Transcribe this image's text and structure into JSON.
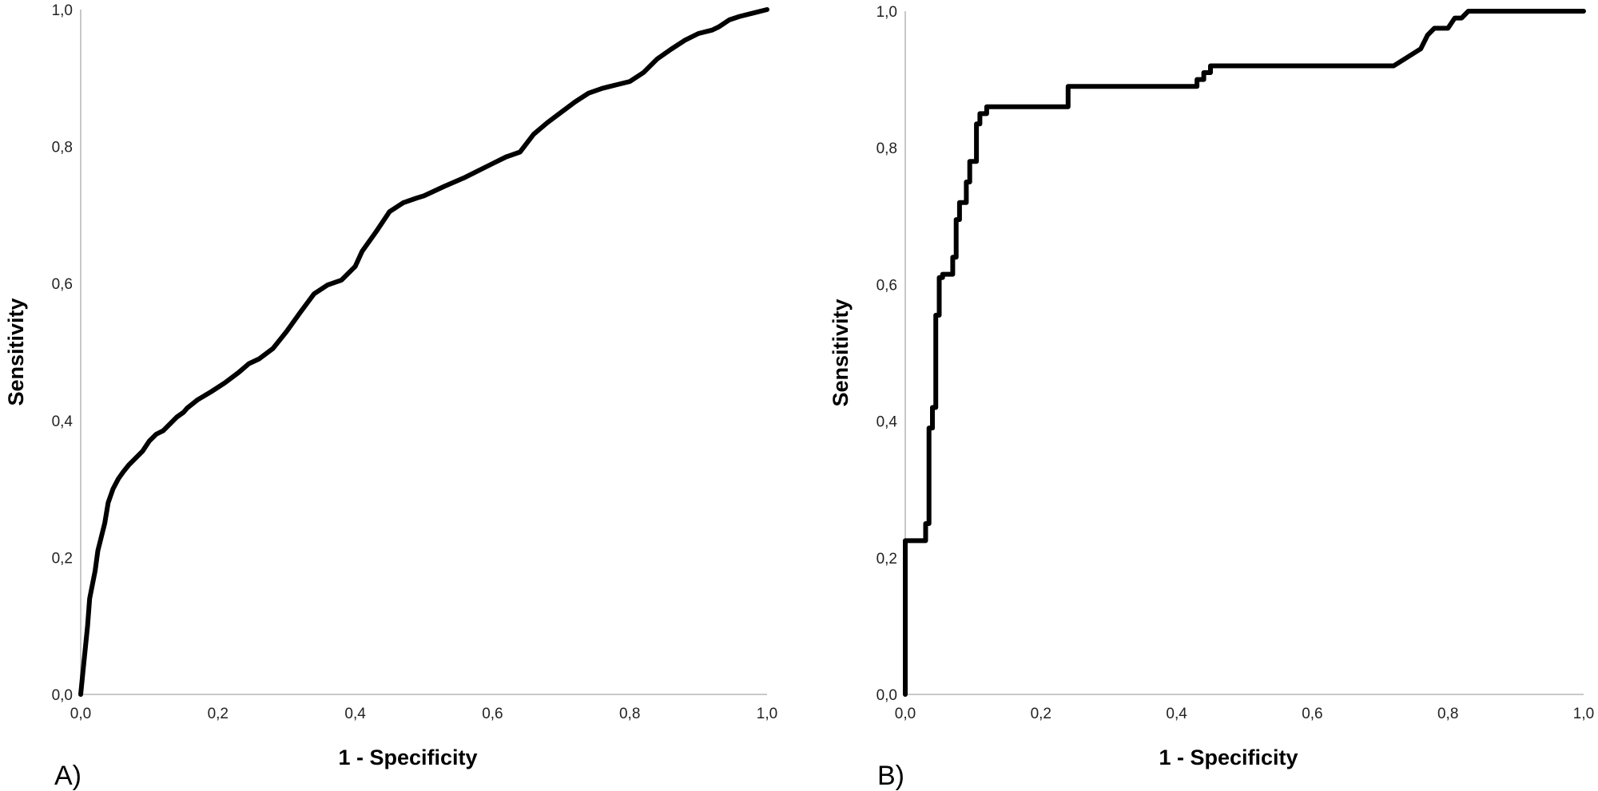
{
  "chart_data": [
    {
      "type": "line",
      "panel_label": "A)",
      "title": "",
      "xlabel": "1 - Specificity",
      "ylabel": "Sensitivity",
      "xlim": [
        0,
        1
      ],
      "ylim": [
        0,
        1
      ],
      "x_ticks": [
        "0,0",
        "0,2",
        "0,4",
        "0,6",
        "0,8",
        "1,0"
      ],
      "y_ticks": [
        "0,0",
        "0,2",
        "0,4",
        "0,6",
        "0,8",
        "1,0"
      ],
      "grid": false,
      "legend": "none",
      "line_color": "#000000",
      "series": [
        {
          "x": [
            0.0,
            0.004,
            0.007,
            0.01,
            0.013,
            0.017,
            0.021,
            0.025,
            0.03,
            0.035,
            0.04,
            0.047,
            0.055,
            0.062,
            0.07,
            0.08,
            0.09,
            0.1,
            0.11,
            0.12,
            0.13,
            0.14,
            0.15,
            0.155,
            0.17,
            0.19,
            0.21,
            0.23,
            0.245,
            0.26,
            0.28,
            0.3,
            0.32,
            0.34,
            0.36,
            0.38,
            0.4,
            0.41,
            0.43,
            0.45,
            0.47,
            0.49,
            0.5,
            0.53,
            0.56,
            0.6,
            0.62,
            0.64,
            0.66,
            0.68,
            0.7,
            0.72,
            0.74,
            0.76,
            0.78,
            0.8,
            0.82,
            0.84,
            0.86,
            0.88,
            0.9,
            0.92,
            0.93,
            0.945,
            0.96,
            0.98,
            1.0
          ],
          "y": [
            0.0,
            0.04,
            0.07,
            0.1,
            0.14,
            0.16,
            0.18,
            0.21,
            0.23,
            0.25,
            0.28,
            0.3,
            0.315,
            0.325,
            0.335,
            0.345,
            0.355,
            0.37,
            0.38,
            0.385,
            0.395,
            0.405,
            0.412,
            0.418,
            0.43,
            0.442,
            0.455,
            0.47,
            0.483,
            0.49,
            0.505,
            0.53,
            0.558,
            0.585,
            0.598,
            0.605,
            0.625,
            0.647,
            0.675,
            0.705,
            0.718,
            0.725,
            0.728,
            0.742,
            0.755,
            0.775,
            0.785,
            0.792,
            0.818,
            0.835,
            0.85,
            0.865,
            0.878,
            0.885,
            0.89,
            0.895,
            0.908,
            0.928,
            0.942,
            0.955,
            0.965,
            0.97,
            0.975,
            0.985,
            0.99,
            0.995,
            1.0
          ]
        }
      ]
    },
    {
      "type": "line",
      "panel_label": "B)",
      "title": "",
      "xlabel": "1 - Specificity",
      "ylabel": "Sensitivity",
      "xlim": [
        0,
        1
      ],
      "ylim": [
        0,
        1
      ],
      "x_ticks": [
        "0,0",
        "0,2",
        "0,4",
        "0,6",
        "0,8",
        "1,0"
      ],
      "y_ticks": [
        "0,0",
        "0,2",
        "0,4",
        "0,6",
        "0,8",
        "1,0"
      ],
      "grid": false,
      "legend": "none",
      "line_color": "#000000",
      "series": [
        {
          "x": [
            0.0,
            0.0,
            0.03,
            0.03,
            0.035,
            0.035,
            0.04,
            0.04,
            0.045,
            0.045,
            0.05,
            0.05,
            0.055,
            0.055,
            0.07,
            0.07,
            0.075,
            0.075,
            0.08,
            0.08,
            0.09,
            0.09,
            0.095,
            0.095,
            0.105,
            0.105,
            0.11,
            0.11,
            0.12,
            0.12,
            0.24,
            0.24,
            0.43,
            0.43,
            0.44,
            0.44,
            0.45,
            0.45,
            0.72,
            0.76,
            0.77,
            0.78,
            0.8,
            0.81,
            0.82,
            0.83,
            1.0
          ],
          "y": [
            0.0,
            0.225,
            0.225,
            0.25,
            0.25,
            0.39,
            0.39,
            0.42,
            0.42,
            0.555,
            0.555,
            0.61,
            0.61,
            0.615,
            0.615,
            0.64,
            0.64,
            0.695,
            0.695,
            0.72,
            0.72,
            0.75,
            0.75,
            0.78,
            0.78,
            0.835,
            0.835,
            0.85,
            0.85,
            0.86,
            0.86,
            0.89,
            0.89,
            0.9,
            0.9,
            0.91,
            0.91,
            0.92,
            0.92,
            0.945,
            0.965,
            0.975,
            0.975,
            0.99,
            0.99,
            1.0,
            1.0
          ]
        }
      ]
    }
  ]
}
